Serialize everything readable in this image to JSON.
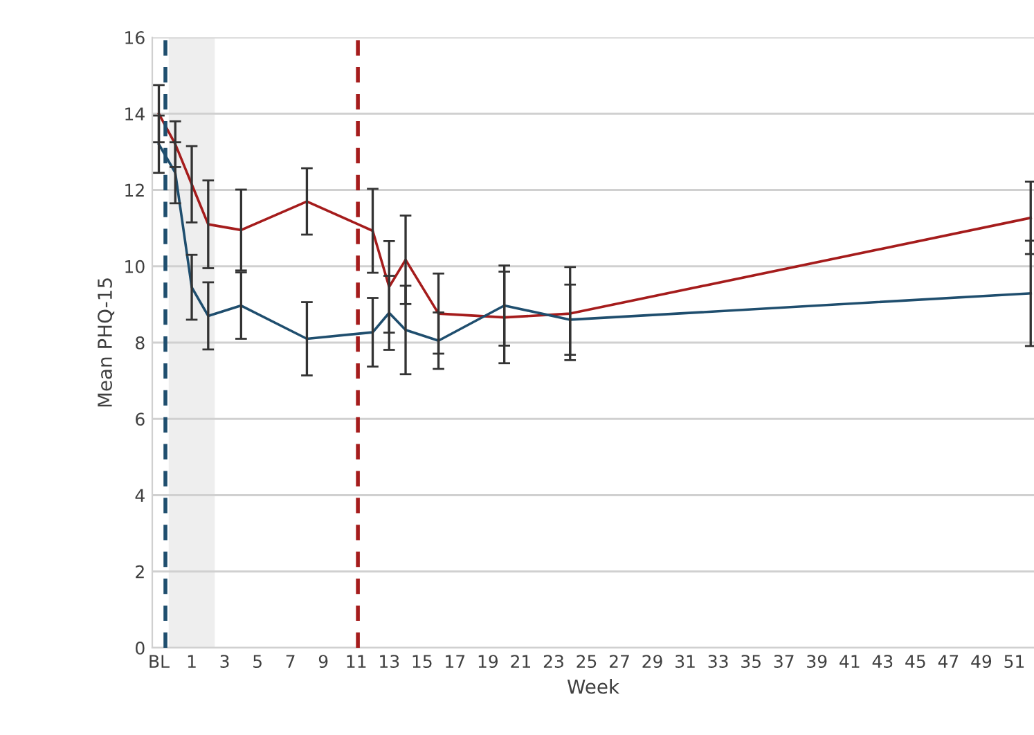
{
  "chart_data": {
    "type": "line",
    "xlabel": "Week",
    "ylabel": "Mean PHQ-15",
    "x": [
      -1,
      0,
      1,
      2,
      4,
      8,
      12,
      13,
      14,
      16,
      20,
      24,
      52
    ],
    "xlim": [
      -1.4,
      52.2
    ],
    "xticks": [
      {
        "value": -1,
        "label": "BL"
      },
      1,
      3,
      5,
      7,
      9,
      11,
      13,
      15,
      17,
      19,
      21,
      23,
      25,
      27,
      29,
      31,
      33,
      35,
      37,
      39,
      41,
      43,
      45,
      47,
      49,
      51
    ],
    "ylim": [
      0,
      16
    ],
    "yticks": [
      0,
      2,
      4,
      6,
      8,
      10,
      12,
      14,
      16
    ],
    "grid": "y",
    "marker": "none",
    "line_style": "solid",
    "series": [
      {
        "color": "#a51c1c",
        "values": [
          14.0,
          13.2,
          12.15,
          11.1,
          10.95,
          11.7,
          10.93,
          9.46,
          10.17,
          8.76,
          8.66,
          8.76,
          11.27
        ],
        "errors": [
          0.75,
          0.6,
          1.0,
          1.15,
          1.06,
          0.87,
          1.1,
          1.2,
          1.16,
          1.05,
          1.2,
          1.22,
          0.95
        ]
      },
      {
        "color": "#1f4e6e",
        "values": [
          13.2,
          12.45,
          9.45,
          8.7,
          8.97,
          8.1,
          8.27,
          8.78,
          8.33,
          8.05,
          8.97,
          8.6,
          9.29
        ],
        "errors": [
          0.75,
          0.8,
          0.85,
          0.88,
          0.87,
          0.96,
          0.9,
          0.97,
          1.16,
          0.74,
          1.05,
          0.92,
          1.38
        ]
      }
    ],
    "ref_lines": [
      {
        "axis": "x",
        "value": -0.6,
        "color": "#1f4e6e",
        "line_style": "dashed"
      },
      {
        "axis": "x",
        "value": 11.1,
        "color": "#a51c1c",
        "line_style": "dashed"
      }
    ],
    "bands": [
      {
        "axis": "x",
        "from": -0.4,
        "to": 2.4,
        "color": "#eeeeee"
      }
    ]
  }
}
